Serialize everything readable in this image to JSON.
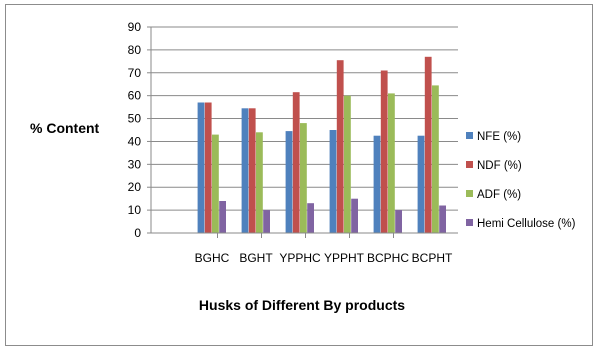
{
  "chart_data": {
    "type": "bar",
    "ylabel": "% Content",
    "xlabel": "Husks of Different By products",
    "categories": [
      "BGHC",
      "BGHT",
      "YPPHC",
      "YPPHT",
      "BCPHC",
      "BCPHT"
    ],
    "ylim": [
      0,
      90
    ],
    "yticks": [
      0,
      10,
      20,
      30,
      40,
      50,
      60,
      70,
      80,
      90
    ],
    "grid": true,
    "legend_position": "right",
    "series": [
      {
        "name": "NFE (%)",
        "color": "#4f81bd",
        "values": [
          57,
          54.5,
          44.5,
          45,
          42.5,
          42.5
        ]
      },
      {
        "name": "NDF (%)",
        "color": "#c0504d",
        "values": [
          57,
          54.5,
          61.5,
          75.5,
          71,
          77
        ]
      },
      {
        "name": "ADF (%)",
        "color": "#9bbb59",
        "values": [
          43,
          44,
          48,
          60,
          61,
          64.5
        ]
      },
      {
        "name": "Hemi Cellulose (%)",
        "color": "#8064a2",
        "values": [
          14,
          10,
          13,
          15,
          10,
          12
        ]
      }
    ]
  }
}
